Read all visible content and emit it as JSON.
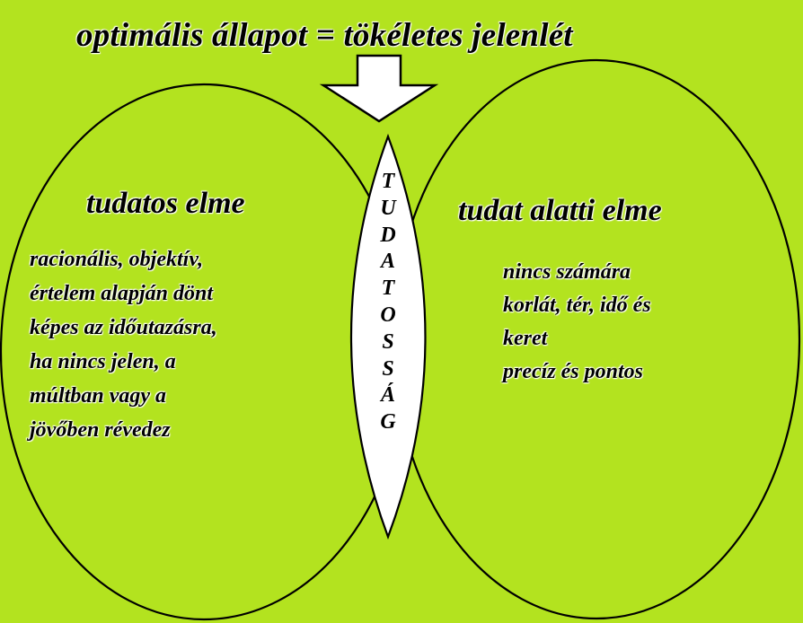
{
  "title": "optimális állapot = tökéletes jelenlét",
  "left_circle": {
    "heading": "tudatos elme",
    "lines": [
      "racionális, objektív,",
      "értelem alapján dönt",
      "képes az időutazásra,",
      "ha nincs jelen, a",
      "múltban vagy a",
      "jövőben révedez"
    ]
  },
  "right_circle": {
    "heading": "tudat alatti elme",
    "lines": [
      "nincs számára",
      "korlát, tér, idő és",
      "keret",
      "precíz és pontos"
    ]
  },
  "intersection": {
    "letters": [
      "T",
      "U",
      "D",
      "A",
      "T",
      "O",
      "S",
      "S",
      "Á",
      "G"
    ]
  },
  "colors": {
    "background": "#b3e31f",
    "stroke": "#000000",
    "arrow_fill": "#ffffff"
  },
  "icons": {
    "arrow": "down-arrow-icon"
  }
}
